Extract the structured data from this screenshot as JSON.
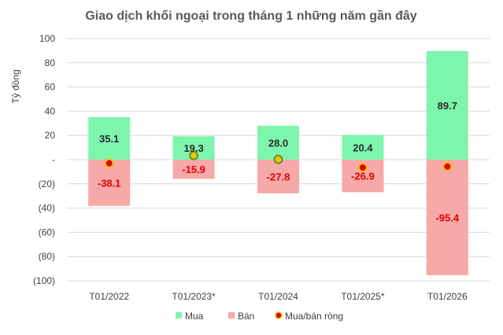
{
  "chart_data": {
    "type": "bar",
    "title": "Giao dịch khối ngoại trong tháng 1 những năm gần đây",
    "ylabel": "Tỷ đồng",
    "xlabel": "",
    "ylim": [
      -100,
      100
    ],
    "yticks": [
      100,
      80,
      60,
      40,
      20,
      0,
      -20,
      -40,
      -60,
      -80,
      -100
    ],
    "ytick_labels": [
      "100",
      "80",
      "60",
      "40",
      "20",
      "-",
      "(20)",
      "(40)",
      "(60)",
      "(80)",
      "(100)"
    ],
    "categories": [
      "T01/2022",
      "T01/2023*",
      "T01/2024",
      "T01/2025*",
      "T01/2026"
    ],
    "series": [
      {
        "name": "Mua",
        "kind": "bar",
        "color": "#7ef5ad",
        "values": [
          35.1,
          19.3,
          28.0,
          20.4,
          89.7
        ],
        "labels": [
          "35.1",
          "19.3",
          "28.0",
          "20.4",
          "89.7"
        ]
      },
      {
        "name": "Bán",
        "kind": "bar",
        "color": "#f7a8a8",
        "values": [
          -38.1,
          -15.9,
          -27.8,
          -26.9,
          -95.4
        ],
        "labels": [
          "-38.1",
          "-15.9",
          "-27.8",
          "-26.9",
          "-95.4"
        ]
      },
      {
        "name": "Mua/bán ròng",
        "kind": "marker",
        "color": "#e00000",
        "values": [
          -3.0,
          3.4,
          0.2,
          -6.5,
          -5.7
        ],
        "marker_fill": [
          "#e00000",
          "#f5c400",
          "#f5c400",
          "#e00000",
          "#e00000"
        ]
      }
    ],
    "legend_position": "bottom",
    "grid": true
  }
}
